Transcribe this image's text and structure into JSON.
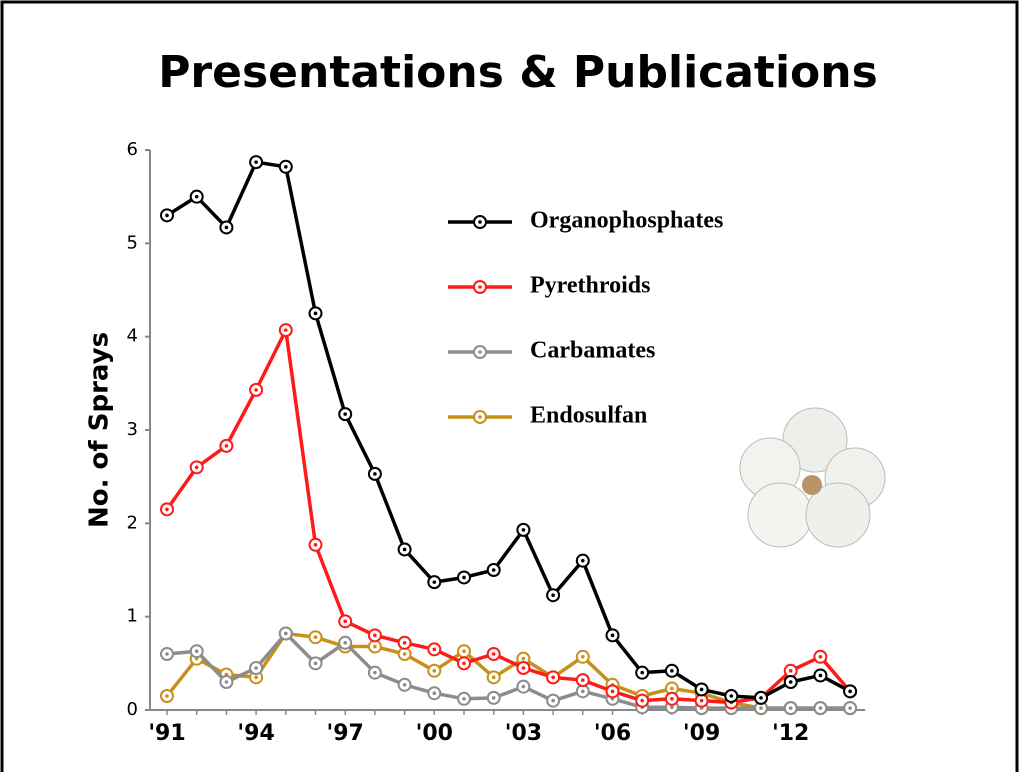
{
  "chart_data": {
    "type": "line",
    "title": "Presentations & Publications",
    "y_label": "No. of Sprays",
    "categories": [
      "'91",
      null,
      null,
      "'94",
      null,
      null,
      "'97",
      null,
      null,
      "'00",
      null,
      null,
      "'03",
      null,
      null,
      "'06",
      null,
      null,
      "'09",
      null,
      null,
      "'12",
      null,
      null
    ],
    "ylim": [
      0,
      6
    ],
    "yticks": [
      0,
      1,
      2,
      3,
      4,
      5,
      6
    ],
    "series": [
      {
        "name": "Organophosphates",
        "color": "#000000",
        "values": [
          5.3,
          5.5,
          5.17,
          5.87,
          5.82,
          4.25,
          3.17,
          2.53,
          1.72,
          1.37,
          1.42,
          1.5,
          1.93,
          1.23,
          1.6,
          0.8,
          0.4,
          0.42,
          0.22,
          0.15,
          0.13,
          0.3,
          0.37,
          0.2
        ]
      },
      {
        "name": "Pyrethroids",
        "color": "#ff1a1a",
        "values": [
          2.15,
          2.6,
          2.83,
          3.43,
          4.07,
          1.77,
          0.95,
          0.8,
          0.72,
          0.65,
          0.5,
          0.6,
          0.45,
          0.35,
          0.32,
          0.2,
          0.1,
          0.12,
          0.1,
          0.08,
          0.13,
          0.42,
          0.57,
          0.2
        ]
      },
      {
        "name": "Carbamates",
        "color": "#8c8c8c",
        "values": [
          0.6,
          0.63,
          0.3,
          0.45,
          0.82,
          0.5,
          0.72,
          0.4,
          0.27,
          0.18,
          0.12,
          0.13,
          0.25,
          0.1,
          0.2,
          0.12,
          0.03,
          0.03,
          0.02,
          0.02,
          0.02,
          0.02,
          0.02,
          0.02
        ]
      },
      {
        "name": "Endosulfan",
        "color": "#c8901a",
        "values": [
          0.15,
          0.55,
          0.38,
          0.35,
          0.82,
          0.78,
          0.68,
          0.68,
          0.6,
          0.42,
          0.63,
          0.35,
          0.55,
          0.35,
          0.57,
          0.27,
          0.15,
          0.23,
          0.18,
          0.08,
          0.02,
          0.02,
          0.02,
          0.02
        ]
      }
    ]
  }
}
